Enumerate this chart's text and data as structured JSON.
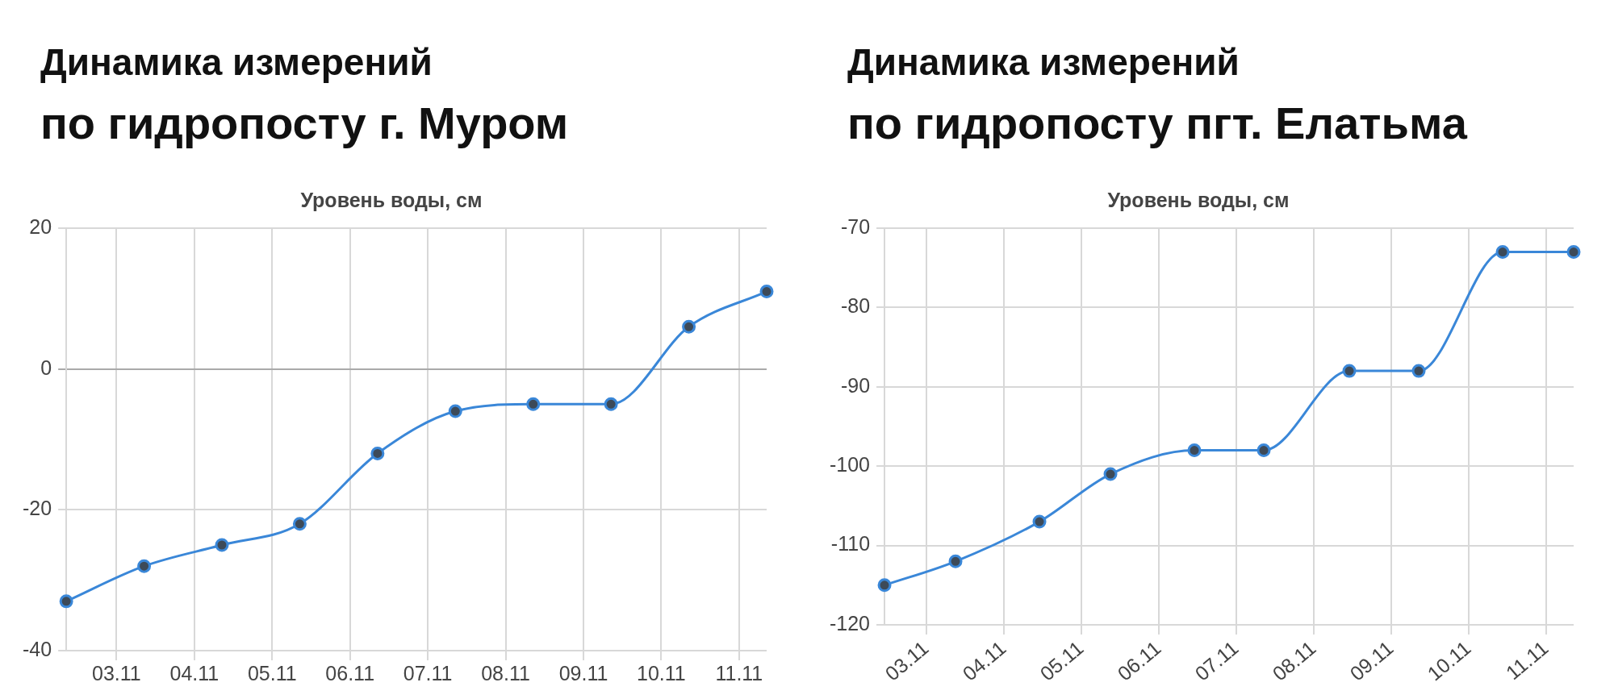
{
  "chart_data": [
    {
      "type": "line",
      "title": "Динамика измерений",
      "subtitle": "по гидропосту г. Муром",
      "ylabel": "Уровень воды, см",
      "x": [
        "--11-02T08:30",
        "--11-03T08:30",
        "--11-04T08:30",
        "--11-05T08:30",
        "--11-06T08:30",
        "--11-07T08:30",
        "--11-08T08:30",
        "--11-09T08:30",
        "--11-10T08:30",
        "--11-11T08:30"
      ],
      "values": [
        -33,
        -28,
        -25,
        -22,
        -12,
        -6,
        -5,
        -5,
        6,
        11
      ],
      "color": "#3a87d8",
      "marker": "circle",
      "grid": true,
      "xlim": [
        "--11-02T08:30",
        "--11-11T08:30"
      ],
      "xticks": [
        {
          "value": "--11-03",
          "label": "03.11"
        },
        {
          "value": "--11-04",
          "label": "04.11"
        },
        {
          "value": "--11-05",
          "label": "05.11"
        },
        {
          "value": "--11-06",
          "label": "06.11"
        },
        {
          "value": "--11-07",
          "label": "07.11"
        },
        {
          "value": "--11-08",
          "label": "08.11"
        },
        {
          "value": "--11-09",
          "label": "09.11"
        },
        {
          "value": "--11-10",
          "label": "10.11"
        },
        {
          "value": "--11-11",
          "label": "11.11"
        }
      ],
      "ylim": [
        -40,
        20
      ],
      "yticks": [
        -40,
        -20,
        0,
        20
      ]
    },
    {
      "type": "line",
      "title": "Динамика измерений",
      "subtitle": "по гидропосту пгт. Елатьма",
      "ylabel": "Уровень воды, см",
      "x": [
        "--11-02T11:00",
        "--11-03T09:00",
        "--11-04T11:00",
        "--11-05T09:00",
        "--11-06T11:00",
        "--11-07T08:30",
        "--11-08T11:00",
        "--11-09T08:30",
        "--11-10T10:30",
        "--11-11T08:30"
      ],
      "values": [
        -115,
        -112,
        -107,
        -101,
        -98,
        -98,
        -88,
        -88,
        -73,
        -73
      ],
      "color": "#3a87d8",
      "marker": "circle",
      "grid": true,
      "xlim": [
        "--11-02T11:00",
        "--11-11T08:30"
      ],
      "xticks": [
        {
          "value": "--11-03",
          "label": "03.11"
        },
        {
          "value": "--11-04",
          "label": "04.11"
        },
        {
          "value": "--11-05",
          "label": "05.11"
        },
        {
          "value": "--11-06",
          "label": "06.11"
        },
        {
          "value": "--11-07",
          "label": "07.11"
        },
        {
          "value": "--11-08",
          "label": "08.11"
        },
        {
          "value": "--11-09",
          "label": "09.11"
        },
        {
          "value": "--11-10",
          "label": "10.11"
        },
        {
          "value": "--11-11",
          "label": "11.11"
        }
      ],
      "ylim": [
        -120,
        -70
      ],
      "yticks": [
        -120,
        -110,
        -100,
        -90,
        -80,
        -70
      ]
    }
  ]
}
